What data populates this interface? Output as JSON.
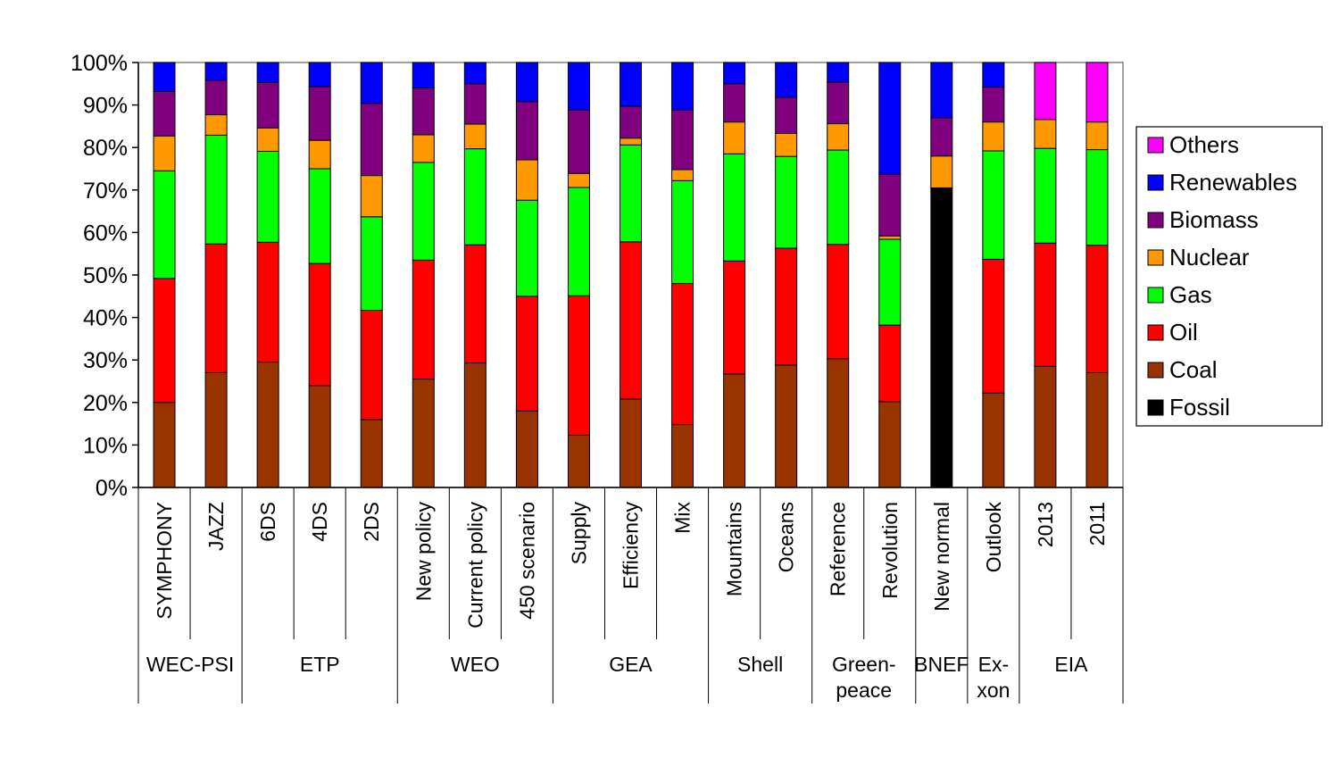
{
  "chart_data": {
    "type": "stacked-bar-percent",
    "title": "",
    "xlabel": "",
    "ylabel": "",
    "ylim": [
      0,
      100
    ],
    "yticks": [
      "0%",
      "10%",
      "20%",
      "30%",
      "40%",
      "50%",
      "60%",
      "70%",
      "80%",
      "90%",
      "100%"
    ],
    "grid": false,
    "legend_position": "right",
    "categories": [
      "SYMPHONY",
      "JAZZ",
      "6DS",
      "4DS",
      "2DS",
      "New policy",
      "Current policy",
      "450 scenario",
      "Supply",
      "Efficiency",
      "Mix",
      "Mountains",
      "Oceans",
      "Reference",
      "Revolution",
      "New normal",
      "Outlook",
      "2013",
      "2011"
    ],
    "groups": [
      {
        "label": [
          "WEC-PSI"
        ],
        "count": 2
      },
      {
        "label": [
          "ETP"
        ],
        "count": 3
      },
      {
        "label": [
          "WEO"
        ],
        "count": 3
      },
      {
        "label": [
          "GEA"
        ],
        "count": 3
      },
      {
        "label": [
          "Shell"
        ],
        "count": 2
      },
      {
        "label": [
          "Green-",
          "peace"
        ],
        "count": 2
      },
      {
        "label": [
          "BNEF"
        ],
        "count": 1
      },
      {
        "label": [
          "Ex-",
          "xon"
        ],
        "count": 1
      },
      {
        "label": [
          "EIA"
        ],
        "count": 2
      }
    ],
    "series": [
      {
        "name": "Fossil",
        "color": "#000000",
        "values": [
          0,
          0,
          0,
          0,
          0,
          0,
          0,
          0,
          0,
          0,
          0,
          0,
          0,
          0,
          0,
          70.5,
          0,
          0,
          0
        ]
      },
      {
        "name": "Coal",
        "color": "#993300",
        "values": [
          20,
          27,
          29.5,
          24,
          16,
          25.5,
          29.3,
          18,
          12.3,
          20.8,
          14.8,
          26.7,
          28.8,
          30.3,
          20.2,
          0,
          22.2,
          28.5,
          27
        ]
      },
      {
        "name": "Oil",
        "color": "#ff0000",
        "values": [
          29.2,
          30.3,
          28.2,
          28.7,
          25.7,
          28,
          27.8,
          27,
          32.8,
          37,
          33.2,
          26.6,
          27.5,
          26.9,
          18,
          0,
          31.5,
          29,
          30
        ]
      },
      {
        "name": "Gas",
        "color": "#00ff00",
        "values": [
          25.3,
          25.6,
          21.4,
          22.3,
          22,
          23,
          22.6,
          22.6,
          25.5,
          22.8,
          24.2,
          25.2,
          21.6,
          22.2,
          20.2,
          0,
          25.5,
          22.3,
          22.5
        ]
      },
      {
        "name": "Nuclear",
        "color": "#ff9900",
        "values": [
          8.2,
          4.8,
          5.5,
          6.7,
          9.7,
          6.5,
          5.8,
          9.5,
          3.3,
          1.6,
          2.6,
          7.5,
          5.4,
          6.2,
          0.8,
          7.5,
          6.8,
          6.8,
          6.5
        ]
      },
      {
        "name": "Biomass",
        "color": "#800080",
        "values": [
          10.5,
          8.1,
          10.7,
          12.6,
          17,
          11,
          9.5,
          13.7,
          14.9,
          7.5,
          14,
          9,
          8.5,
          9.8,
          14.5,
          9,
          8.2,
          0,
          0
        ]
      },
      {
        "name": "Renewables",
        "color": "#0000ff",
        "values": [
          6.8,
          4.2,
          4.7,
          5.7,
          9.6,
          6,
          5,
          9.2,
          11.2,
          10.3,
          11.2,
          5,
          8.2,
          4.6,
          26.3,
          13,
          5.8,
          0,
          0
        ]
      },
      {
        "name": "Others",
        "color": "#ff00ff",
        "values": [
          0,
          0,
          0,
          0,
          0,
          0,
          0,
          0,
          0,
          0,
          0,
          0,
          0,
          0,
          0,
          0,
          0,
          13.4,
          14
        ]
      }
    ],
    "legend": [
      "Others",
      "Renewables",
      "Biomass",
      "Nuclear",
      "Gas",
      "Oil",
      "Coal",
      "Fossil"
    ]
  }
}
